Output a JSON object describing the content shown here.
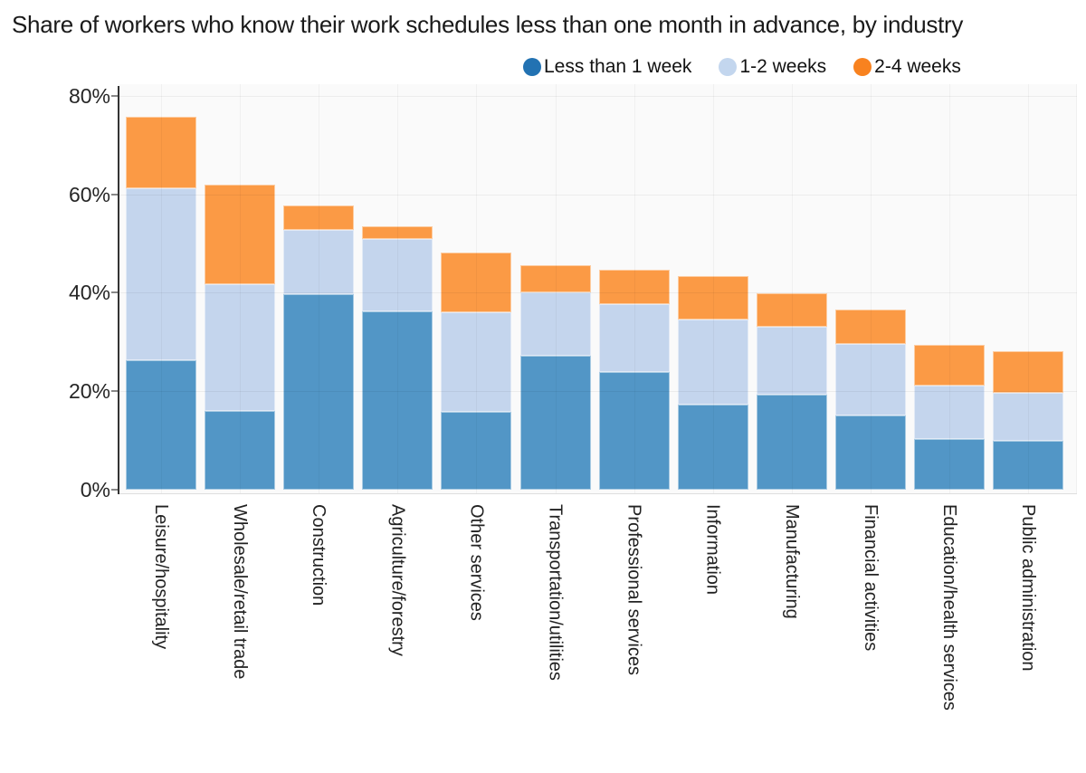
{
  "title": "Share of workers who know their work schedules less than one month in advance, by industry",
  "legend": {
    "items": [
      {
        "label": "Less than 1 week",
        "color": "#2272b2"
      },
      {
        "label": "1-2 weeks",
        "color": "#c3d6ee"
      },
      {
        "label": "2-4 weeks",
        "color": "#f8821f"
      }
    ]
  },
  "colors": {
    "plot_background": "#fafafa",
    "bar_less_than_1_week": "#5296c6",
    "bar_1_2_weeks": "#c4d5ed",
    "bar_2_4_weeks": "#fb9a45",
    "axis_line": "#333333"
  },
  "chart_data": {
    "type": "bar",
    "stacked": true,
    "title": "Share of workers who know their work schedules less than one month in advance, by industry",
    "xlabel": "",
    "ylabel": "",
    "ylim": [
      0,
      80
    ],
    "yticks": [
      "0%",
      "20%",
      "40%",
      "60%",
      "80%"
    ],
    "ytick_values": [
      0,
      20,
      40,
      60,
      80
    ],
    "grid": true,
    "legend_position": "top",
    "categories": [
      "Leisure/hospitality",
      "Wholesale/retail trade",
      "Construction",
      "Agriculture/forestry",
      "Other services",
      "Transportation/utilities",
      "Professional services",
      "Information",
      "Manufacturing",
      "Financial activities",
      "Education/health services",
      "Public administration"
    ],
    "series": [
      {
        "name": "Less than 1 week",
        "color": "#5296c6",
        "values": [
          26.2,
          16.0,
          39.7,
          36.3,
          15.8,
          27.2,
          23.9,
          17.2,
          19.3,
          15.1,
          10.3,
          10.0
        ]
      },
      {
        "name": "1-2 weeks",
        "color": "#c4d5ed",
        "values": [
          35.1,
          25.8,
          13.1,
          14.6,
          20.2,
          12.8,
          13.7,
          17.3,
          13.8,
          14.5,
          10.8,
          9.7
        ]
      },
      {
        "name": "2-4 weeks",
        "color": "#fb9a45",
        "values": [
          14.5,
          20.1,
          4.9,
          2.6,
          12.2,
          5.5,
          7.1,
          8.8,
          6.7,
          7.0,
          8.4,
          8.5
        ]
      }
    ],
    "stack_totals": [
      75.8,
      61.9,
      57.7,
      53.5,
      48.2,
      45.5,
      44.7,
      43.3,
      39.8,
      36.6,
      29.5,
      28.2
    ]
  }
}
